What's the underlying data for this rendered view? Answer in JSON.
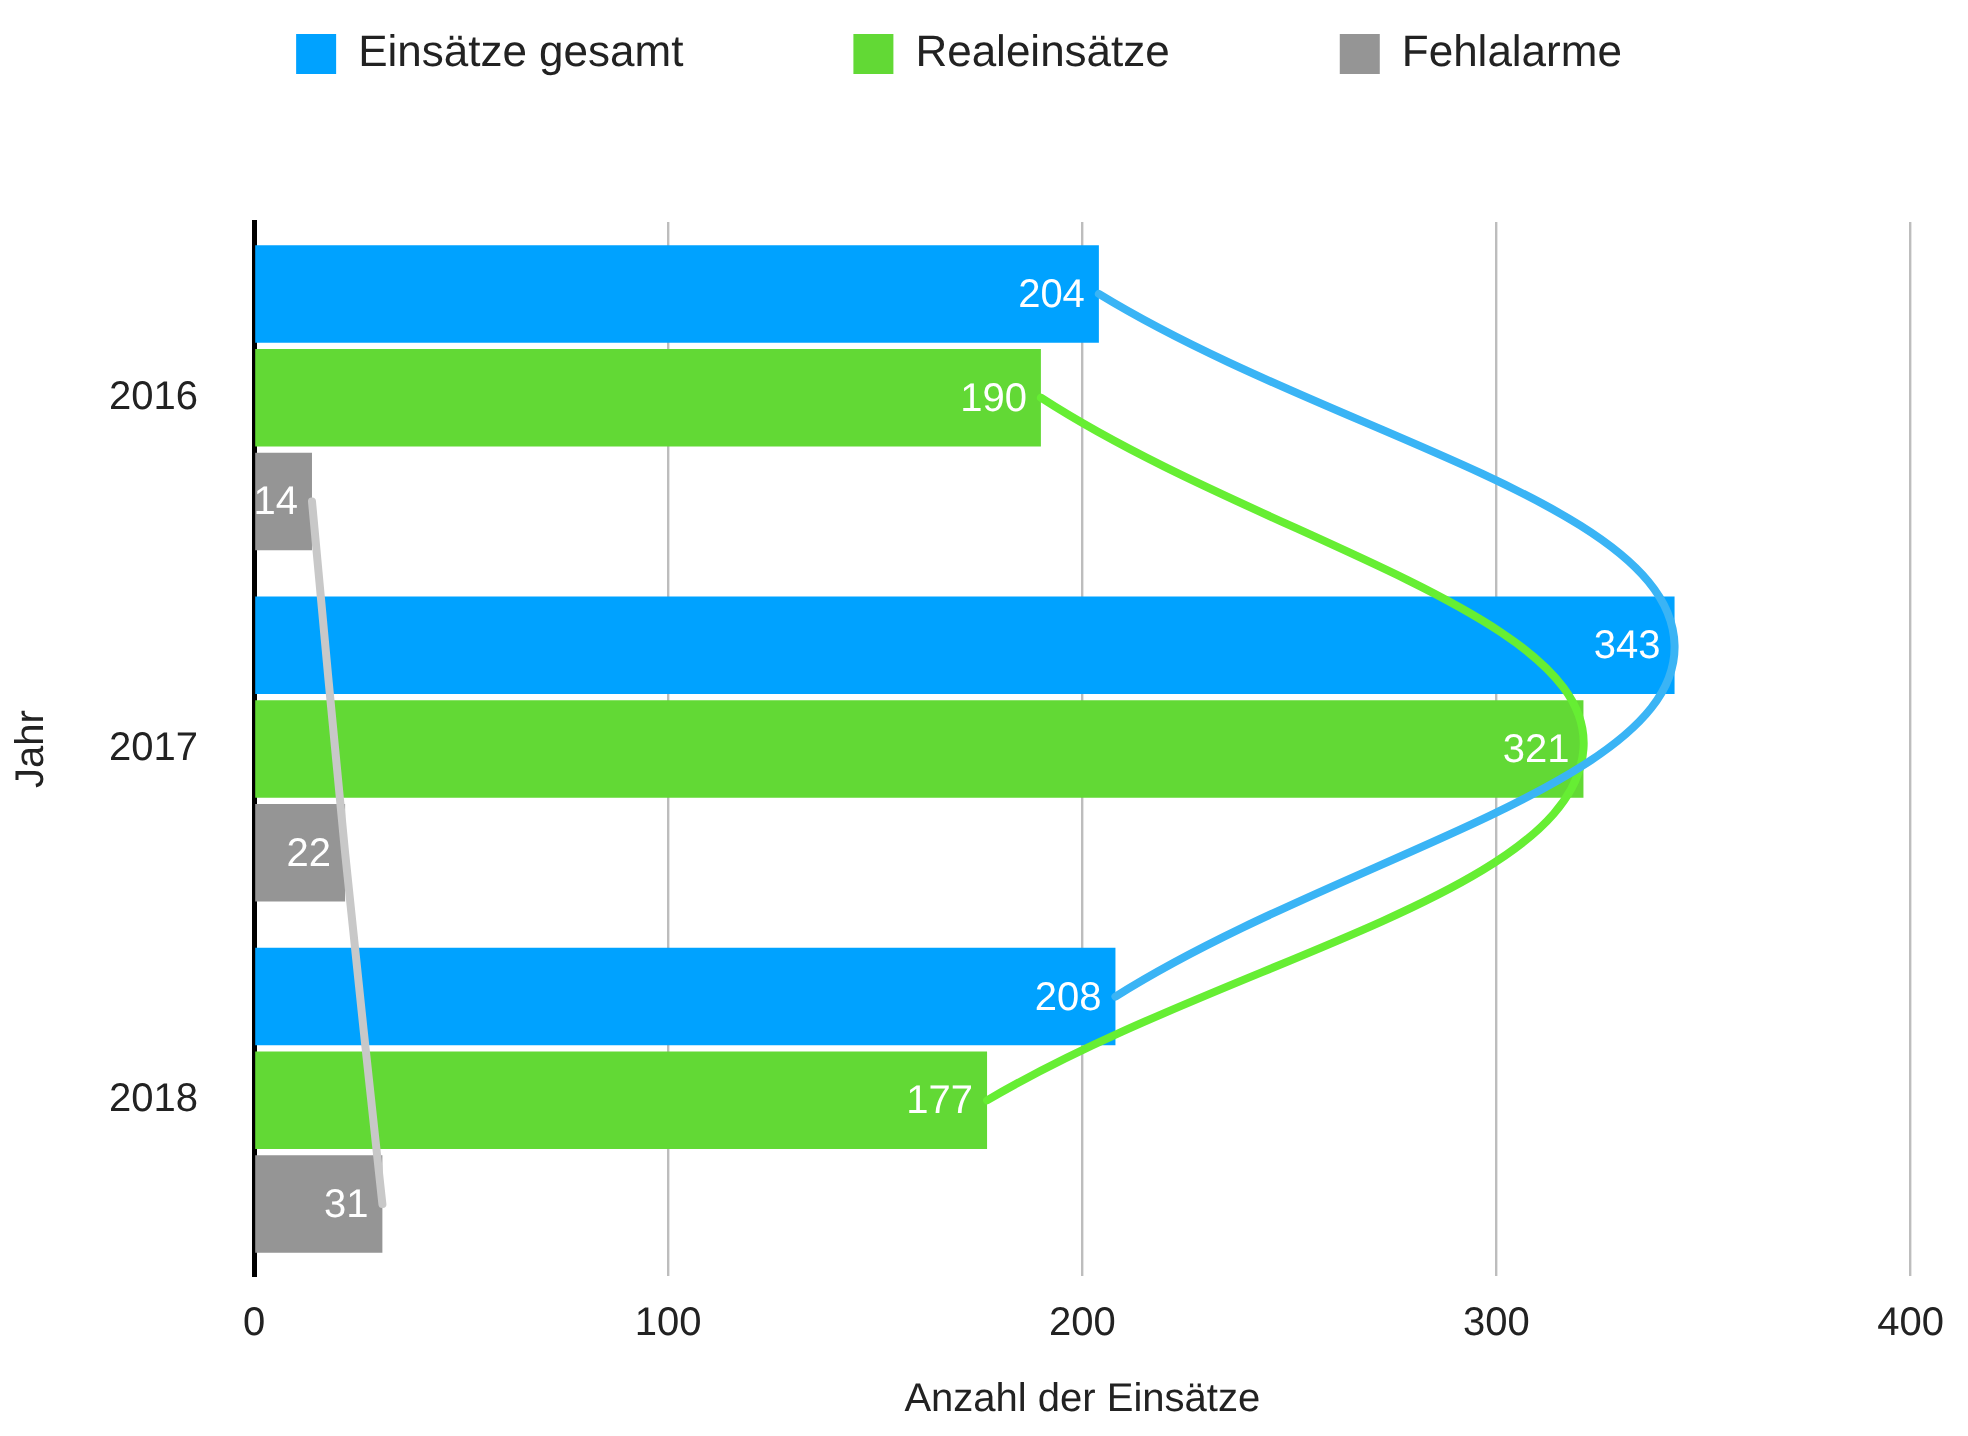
{
  "chart_data": {
    "type": "bar",
    "orientation": "horizontal",
    "xlabel": "Anzahl der Einsätze",
    "ylabel": "Jahr",
    "categories": [
      "2016",
      "2017",
      "2018"
    ],
    "series": [
      {
        "name": "Einsätze gesamt",
        "color": "#00a2ff",
        "values": [
          204,
          343,
          208
        ],
        "value_labels": [
          "204",
          "343",
          "208"
        ]
      },
      {
        "name": "Realeinsätze",
        "color": "#62d935",
        "values": [
          190,
          321,
          177
        ],
        "value_labels": [
          "190",
          "321",
          "177"
        ]
      },
      {
        "name": "Fehlalarme",
        "color": "#959595",
        "values": [
          14,
          22,
          31
        ],
        "value_labels": [
          "14",
          "22",
          "31"
        ]
      },
      {
        "type": "line",
        "color": "#3ab4f5",
        "values": [
          204,
          343,
          208
        ]
      },
      {
        "type": "line",
        "color": "#66ee33",
        "values": [
          190,
          321,
          177
        ]
      },
      {
        "type": "line",
        "color": "#c8c8c8",
        "values": [
          14,
          22,
          31
        ]
      }
    ],
    "xlim": [
      0,
      400
    ],
    "xticks": [
      0,
      100,
      200,
      300,
      400
    ],
    "grid": "x",
    "legend": "top"
  }
}
